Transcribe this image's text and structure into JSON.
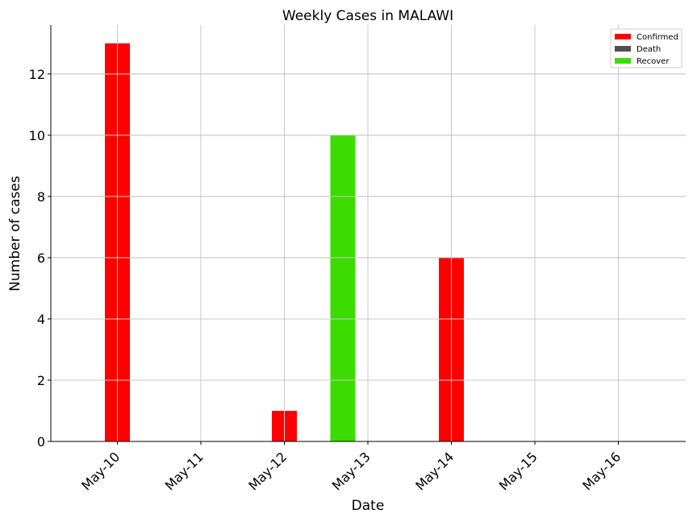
{
  "chart_data": {
    "type": "bar",
    "title": "Weekly Cases in MALAWI",
    "xlabel": "Date",
    "ylabel": "Number of cases",
    "categories": [
      "May-10",
      "May-11",
      "May-12",
      "May-13",
      "May-14",
      "May-15",
      "May-16"
    ],
    "series": [
      {
        "name": "Confirmed",
        "color": "#ff0000",
        "values": [
          13,
          0,
          1,
          0,
          6,
          0,
          0
        ]
      },
      {
        "name": "Death",
        "color": "#505050",
        "values": [
          0,
          0,
          0,
          0,
          0,
          0,
          0
        ]
      },
      {
        "name": "Recover",
        "color": "#3cdc00",
        "values": [
          0,
          0,
          0,
          10,
          0,
          0,
          0
        ]
      }
    ],
    "yticks": [
      0,
      2,
      4,
      6,
      8,
      10,
      12
    ],
    "ylim": [
      0,
      13.6
    ],
    "grid": true,
    "legend_position": "top-right"
  }
}
